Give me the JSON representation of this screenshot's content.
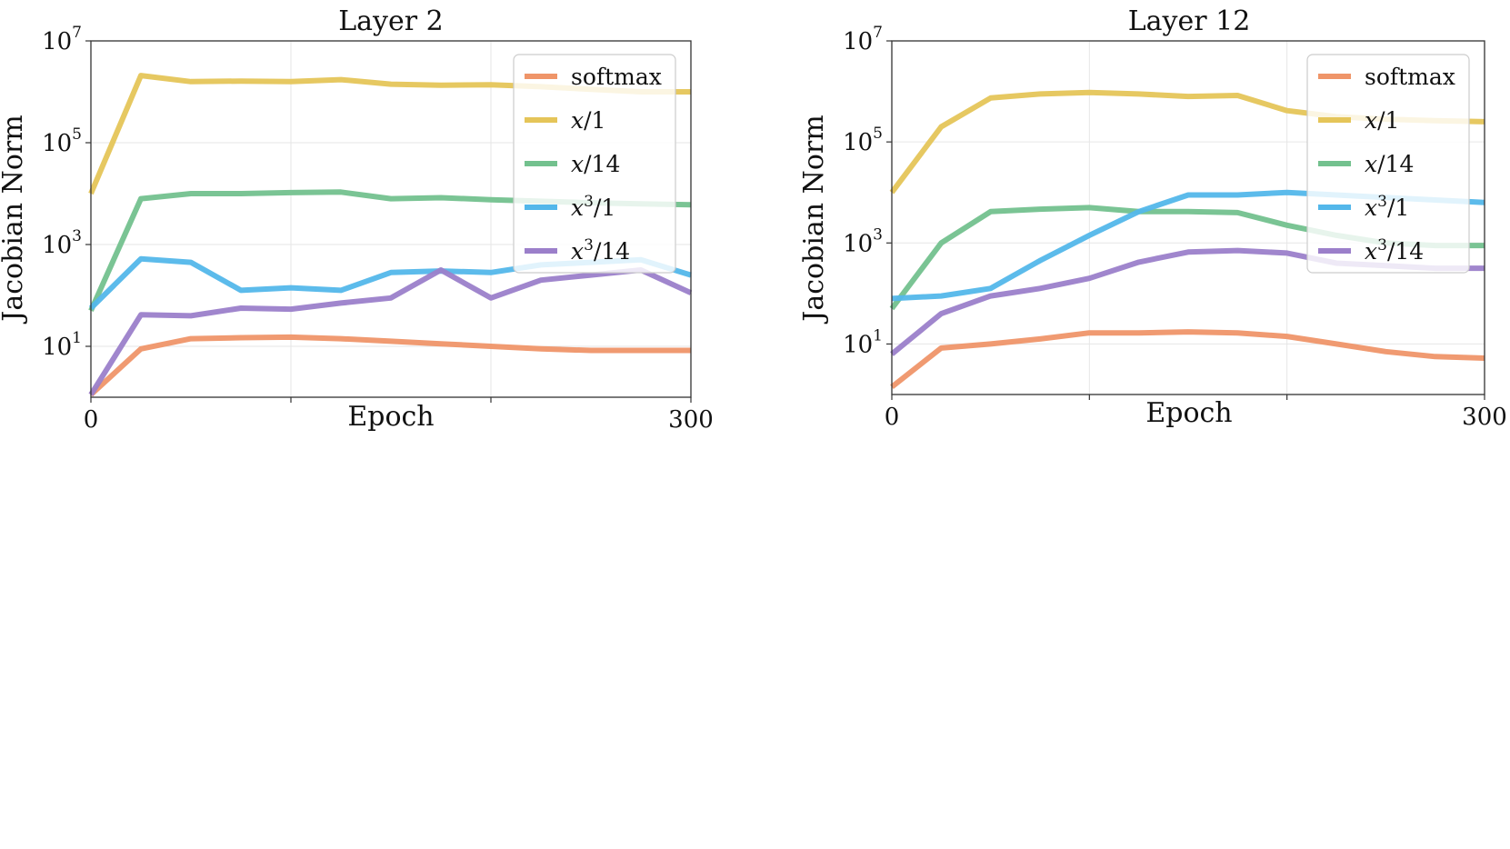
{
  "chart_data": [
    {
      "type": "line",
      "title": "Layer 2",
      "xlabel": "Epoch",
      "ylabel": "Jacobian Norm",
      "xlim": [
        0,
        300
      ],
      "ylim_log10": [
        0,
        7
      ],
      "yscale": "log",
      "x_tick_labels": [
        "0",
        "300"
      ],
      "y_tick_labels": [
        {
          "base": "10",
          "exp": "1",
          "value": 10
        },
        {
          "base": "10",
          "exp": "3",
          "value": 1000
        },
        {
          "base": "10",
          "exp": "5",
          "value": 100000
        },
        {
          "base": "10",
          "exp": "7",
          "value": 10000000
        }
      ],
      "x": [
        0,
        25,
        50,
        75,
        100,
        125,
        150,
        175,
        200,
        225,
        250,
        275,
        300
      ],
      "legend_position": "upper right",
      "series": [
        {
          "name": "softmax",
          "color": "#ef9569",
          "log10_values": [
            0.05,
            0.95,
            1.15,
            1.17,
            1.18,
            1.15,
            1.1,
            1.05,
            1.0,
            0.95,
            0.92,
            0.92,
            0.92
          ]
        },
        {
          "name": "x/1",
          "color": "#e5c559",
          "log10_values": [
            4.0,
            6.32,
            6.2,
            6.21,
            6.2,
            6.24,
            6.15,
            6.13,
            6.14,
            6.1,
            6.05,
            6.0,
            6.0
          ]
        },
        {
          "name": "x/14",
          "color": "#73c18e",
          "log10_values": [
            1.7,
            3.9,
            4.0,
            4.0,
            4.02,
            4.03,
            3.9,
            3.92,
            3.88,
            3.85,
            3.82,
            3.8,
            3.78
          ]
        },
        {
          "name": "x³/1",
          "color": "#53b7ea",
          "log10_values": [
            1.75,
            2.72,
            2.65,
            2.1,
            2.15,
            2.1,
            2.45,
            2.48,
            2.45,
            2.6,
            2.65,
            2.7,
            2.4
          ]
        },
        {
          "name": "x³/14",
          "color": "#9b7fca",
          "log10_values": [
            0.05,
            1.62,
            1.6,
            1.75,
            1.73,
            1.85,
            1.95,
            2.5,
            1.95,
            2.3,
            2.4,
            2.5,
            2.05
          ]
        }
      ]
    },
    {
      "type": "line",
      "title": "Layer 12",
      "xlabel": "Epoch",
      "ylabel": "Jacobian Norm",
      "xlim": [
        0,
        300
      ],
      "ylim_log10": [
        0,
        7
      ],
      "yscale": "log",
      "x_tick_labels": [
        "0",
        "300"
      ],
      "y_tick_labels": [
        {
          "base": "10",
          "exp": "1",
          "value": 10
        },
        {
          "base": "10",
          "exp": "3",
          "value": 1000
        },
        {
          "base": "10",
          "exp": "5",
          "value": 100000
        },
        {
          "base": "10",
          "exp": "7",
          "value": 10000000
        }
      ],
      "x": [
        0,
        25,
        50,
        75,
        100,
        125,
        150,
        175,
        200,
        225,
        250,
        275,
        300
      ],
      "legend_position": "upper right",
      "series": [
        {
          "name": "softmax",
          "color": "#ef9569",
          "log10_values": [
            0.15,
            0.92,
            1.0,
            1.1,
            1.22,
            1.22,
            1.24,
            1.22,
            1.15,
            1.0,
            0.85,
            0.75,
            0.72
          ]
        },
        {
          "name": "x/1",
          "color": "#e5c559",
          "log10_values": [
            4.0,
            5.3,
            5.87,
            5.95,
            5.98,
            5.95,
            5.9,
            5.92,
            5.62,
            5.5,
            5.45,
            5.42,
            5.4
          ]
        },
        {
          "name": "x/14",
          "color": "#73c18e",
          "log10_values": [
            1.7,
            3.0,
            3.62,
            3.67,
            3.7,
            3.62,
            3.62,
            3.6,
            3.35,
            3.15,
            3.0,
            2.95,
            2.95
          ]
        },
        {
          "name": "x³/1",
          "color": "#53b7ea",
          "log10_values": [
            1.9,
            1.95,
            2.1,
            2.65,
            3.15,
            3.62,
            3.95,
            3.95,
            4.0,
            3.95,
            3.9,
            3.85,
            3.8
          ]
        },
        {
          "name": "x³/14",
          "color": "#9b7fca",
          "log10_values": [
            0.8,
            1.6,
            1.95,
            2.1,
            2.3,
            2.62,
            2.82,
            2.85,
            2.8,
            2.6,
            2.55,
            2.5,
            2.5
          ]
        }
      ]
    }
  ]
}
